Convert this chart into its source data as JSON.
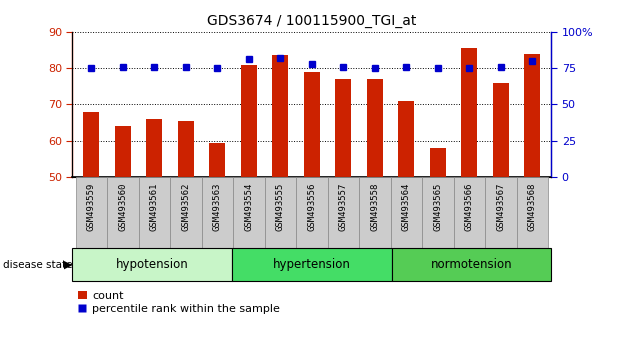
{
  "title": "GDS3674 / 100115900_TGI_at",
  "samples": [
    "GSM493559",
    "GSM493560",
    "GSM493561",
    "GSM493562",
    "GSM493563",
    "GSM493554",
    "GSM493555",
    "GSM493556",
    "GSM493557",
    "GSM493558",
    "GSM493564",
    "GSM493565",
    "GSM493566",
    "GSM493567",
    "GSM493568"
  ],
  "count_values": [
    68.0,
    64.0,
    66.0,
    65.5,
    59.5,
    81.0,
    83.5,
    79.0,
    77.0,
    77.0,
    71.0,
    58.0,
    85.5,
    76.0,
    84.0
  ],
  "percentile_values": [
    75,
    76,
    76,
    76,
    75,
    81,
    82,
    78,
    76,
    75,
    75.5,
    75,
    75,
    76,
    80
  ],
  "groups": [
    {
      "label": "hypotension",
      "start": 0,
      "end": 5,
      "color": "#c8f5c8"
    },
    {
      "label": "hypertension",
      "start": 5,
      "end": 10,
      "color": "#44dd66"
    },
    {
      "label": "normotension",
      "start": 10,
      "end": 15,
      "color": "#55cc55"
    }
  ],
  "ylim_left": [
    50,
    90
  ],
  "ylim_right": [
    0,
    100
  ],
  "yticks_left": [
    50,
    60,
    70,
    80,
    90
  ],
  "yticks_right": [
    0,
    25,
    50,
    75,
    100
  ],
  "bar_color": "#cc2200",
  "dot_color": "#0000cc",
  "left_axis_color": "#cc2200",
  "right_axis_color": "#0000cc",
  "tick_bg_color": "#cccccc",
  "disease_state_label": "disease state",
  "legend_items": [
    "count",
    "percentile rank within the sample"
  ],
  "bar_width": 0.5
}
